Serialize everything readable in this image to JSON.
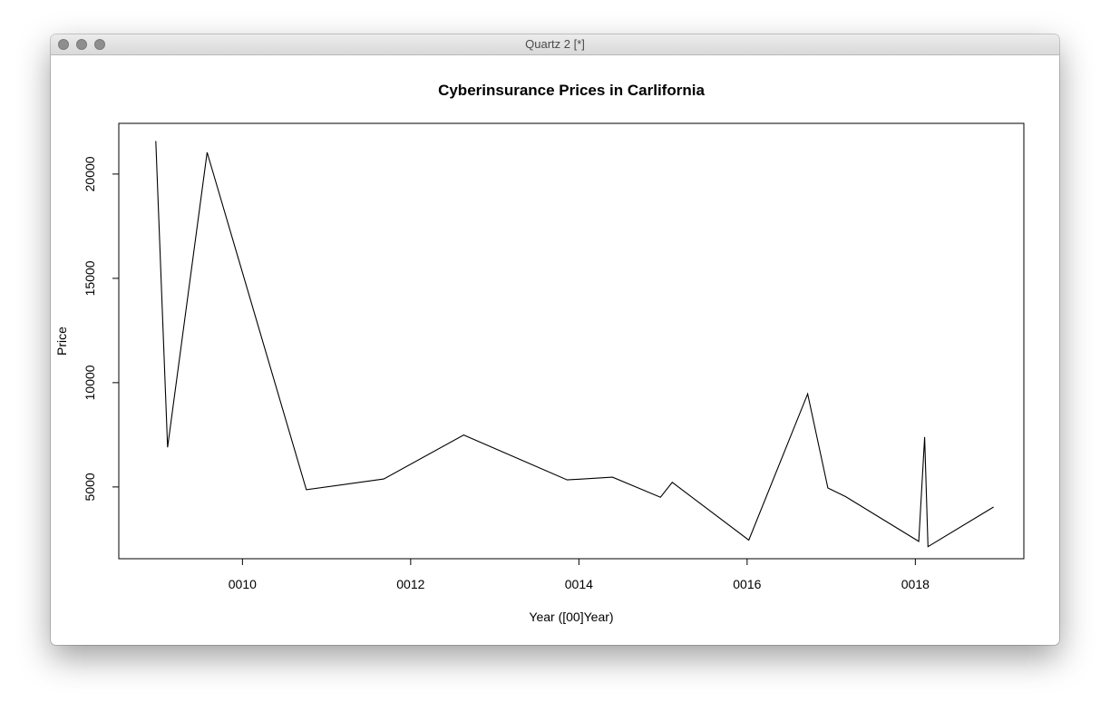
{
  "window": {
    "title": "Quartz 2 [*]"
  },
  "chart_data": {
    "type": "line",
    "title": "Cyberinsurance Prices in Carlifornia",
    "xlabel": "Year ([00]Year)",
    "ylabel": "Price",
    "xlim": [
      8.53,
      19.29
    ],
    "ylim": [
      1560,
      22430
    ],
    "x_ticks": [
      {
        "value": 10,
        "label": "0010"
      },
      {
        "value": 12,
        "label": "0012"
      },
      {
        "value": 14,
        "label": "0014"
      },
      {
        "value": 16,
        "label": "0016"
      },
      {
        "value": 18,
        "label": "0018"
      }
    ],
    "y_ticks": [
      {
        "value": 5000,
        "label": "5000"
      },
      {
        "value": 10000,
        "label": "10000"
      },
      {
        "value": 15000,
        "label": "15000"
      },
      {
        "value": 20000,
        "label": "20000"
      }
    ],
    "grid": false,
    "series": [
      {
        "color": "#000000",
        "x": [
          8.97,
          9.11,
          9.58,
          10.76,
          11.68,
          12.63,
          13.86,
          14.4,
          14.97,
          15.11,
          16.02,
          16.72,
          16.96,
          17.17,
          18.04,
          18.11,
          18.15,
          18.93
        ],
        "y": [
          21580,
          6900,
          21040,
          4870,
          5380,
          7490,
          5340,
          5470,
          4510,
          5220,
          2450,
          9460,
          4950,
          4540,
          2390,
          7390,
          2140,
          4040
        ]
      }
    ]
  }
}
